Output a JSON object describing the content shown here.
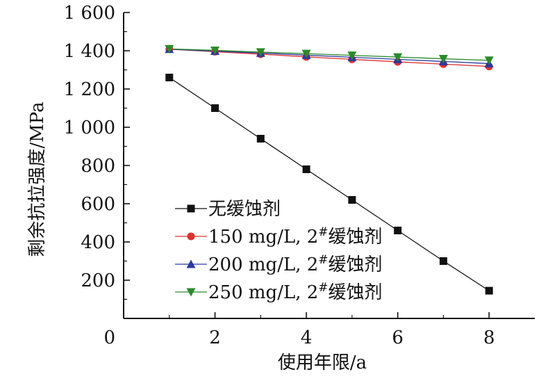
{
  "chart_data": {
    "type": "line",
    "xlabel": "使用年限/a",
    "ylabel": "剩余抗拉强度/MPa",
    "xlim": [
      0,
      9
    ],
    "ylim": [
      0,
      1600
    ],
    "xticks": [
      0,
      2,
      4,
      6,
      8
    ],
    "xtick_labels": [
      "0",
      "2",
      "4",
      "6",
      "8"
    ],
    "yticks": [
      200,
      400,
      600,
      800,
      1000,
      1200,
      1400,
      1600
    ],
    "ytick_labels": [
      "200",
      "400",
      "600",
      "800",
      "1 000",
      "1 200",
      "1 400",
      "1 600"
    ],
    "grid": false,
    "legend_position": "lower-left",
    "series": [
      {
        "name": "无缓蚀剂",
        "marker": "square",
        "color": "#111111",
        "x": [
          1,
          2,
          3,
          4,
          5,
          6,
          7,
          8
        ],
        "y": [
          1260,
          1100,
          940,
          780,
          620,
          460,
          300,
          145
        ]
      },
      {
        "name": "150 mg/L, 2",
        "name_superscript": "#",
        "name_suffix": "缓蚀剂",
        "marker": "circle",
        "color": "#e03030",
        "x": [
          1,
          2,
          3,
          4,
          5,
          6,
          7,
          8
        ],
        "y": [
          1408,
          1395,
          1382,
          1368,
          1355,
          1342,
          1330,
          1318
        ]
      },
      {
        "name": "200 mg/L, 2",
        "name_superscript": "#",
        "name_suffix": "缓蚀剂",
        "marker": "triangle-up",
        "color": "#2a3aa0",
        "x": [
          1,
          2,
          3,
          4,
          5,
          6,
          7,
          8
        ],
        "y": [
          1408,
          1398,
          1388,
          1377,
          1366,
          1355,
          1344,
          1333
        ]
      },
      {
        "name": "250 mg/L, 2",
        "name_superscript": "#",
        "name_suffix": "缓蚀剂",
        "marker": "triangle-down",
        "color": "#2a8a2a",
        "x": [
          1,
          2,
          3,
          4,
          5,
          6,
          7,
          8
        ],
        "y": [
          1410,
          1402,
          1393,
          1385,
          1376,
          1367,
          1358,
          1350
        ]
      }
    ]
  }
}
